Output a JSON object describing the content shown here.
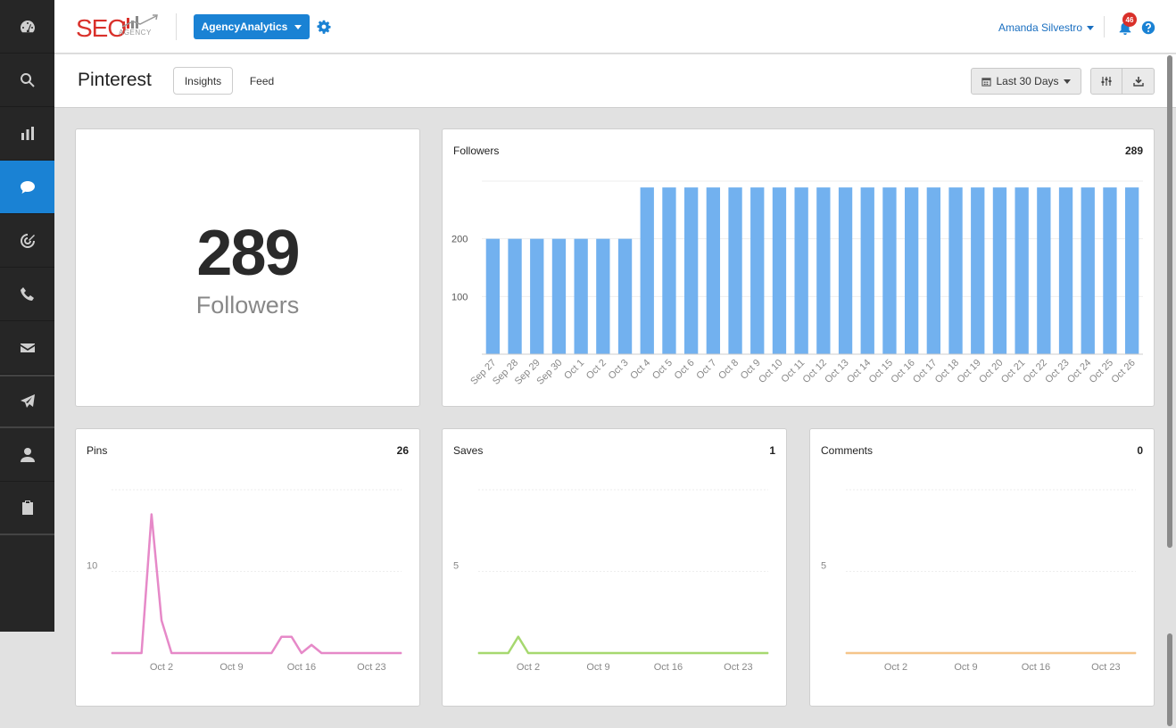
{
  "sidebar": {
    "items": [
      {
        "icon": "dashboard-icon",
        "active": false
      },
      {
        "icon": "search-icon",
        "active": false
      },
      {
        "icon": "bar-chart-icon",
        "active": false
      },
      {
        "icon": "chat-bubble-icon",
        "active": true
      },
      {
        "icon": "target-icon",
        "active": false
      },
      {
        "icon": "phone-icon",
        "active": false
      },
      {
        "icon": "envelope-icon",
        "active": false
      },
      {
        "icon": "paper-plane-icon",
        "active": false
      },
      {
        "icon": "user-icon",
        "active": false
      },
      {
        "icon": "clipboard-check-icon",
        "active": false
      }
    ]
  },
  "header": {
    "logo_text": "SEO",
    "logo_subtext": "AGENCY",
    "agency_button": "AgencyAnalytics",
    "user_name": "Amanda Silvestro",
    "notification_count": "46"
  },
  "subheader": {
    "title": "Pinterest",
    "tabs": [
      {
        "label": "Insights",
        "active": true
      },
      {
        "label": "Feed",
        "active": false
      }
    ],
    "date_range": "Last 30 Days"
  },
  "summary": {
    "value": "289",
    "label": "Followers"
  },
  "colors": {
    "accent": "#1a82d4",
    "followers_bar": "#72b1ef",
    "pins_line": "#e689c8",
    "saves_line": "#a6d86f",
    "comments_line": "#f5c58a"
  },
  "followers_chart": {
    "title": "Followers",
    "total": "289",
    "chart_data": {
      "type": "bar",
      "categories": [
        "Sep 27",
        "Sep 28",
        "Sep 29",
        "Sep 30",
        "Oct 1",
        "Oct 2",
        "Oct 3",
        "Oct 4",
        "Oct 5",
        "Oct 6",
        "Oct 7",
        "Oct 8",
        "Oct 9",
        "Oct 10",
        "Oct 11",
        "Oct 12",
        "Oct 13",
        "Oct 14",
        "Oct 15",
        "Oct 16",
        "Oct 17",
        "Oct 18",
        "Oct 19",
        "Oct 20",
        "Oct 21",
        "Oct 22",
        "Oct 23",
        "Oct 24",
        "Oct 25",
        "Oct 26"
      ],
      "values": [
        200,
        200,
        200,
        200,
        200,
        200,
        200,
        289,
        289,
        289,
        289,
        289,
        289,
        289,
        289,
        289,
        289,
        289,
        289,
        289,
        289,
        289,
        289,
        289,
        289,
        289,
        289,
        289,
        289,
        289
      ],
      "yticks": [
        100,
        200
      ],
      "ylim": [
        0,
        300
      ]
    }
  },
  "pins_chart": {
    "title": "Pins",
    "total": "26",
    "chart_data": {
      "type": "line",
      "x": [
        "Sep 27",
        "Sep 28",
        "Sep 29",
        "Sep 30",
        "Oct 1",
        "Oct 2",
        "Oct 3",
        "Oct 4",
        "Oct 5",
        "Oct 6",
        "Oct 7",
        "Oct 8",
        "Oct 9",
        "Oct 10",
        "Oct 11",
        "Oct 12",
        "Oct 13",
        "Oct 14",
        "Oct 15",
        "Oct 16",
        "Oct 17",
        "Oct 18",
        "Oct 19",
        "Oct 20",
        "Oct 21",
        "Oct 22",
        "Oct 23",
        "Oct 24",
        "Oct 25",
        "Oct 26"
      ],
      "values": [
        0,
        0,
        0,
        0,
        17,
        4,
        0,
        0,
        0,
        0,
        0,
        0,
        0,
        0,
        0,
        0,
        0,
        2,
        2,
        0,
        1,
        0,
        0,
        0,
        0,
        0,
        0,
        0,
        0,
        0
      ],
      "xticks": [
        "Oct 2",
        "Oct 9",
        "Oct 16",
        "Oct 23"
      ],
      "yticks": [
        10
      ],
      "ylim": [
        0,
        20
      ]
    }
  },
  "saves_chart": {
    "title": "Saves",
    "total": "1",
    "chart_data": {
      "type": "line",
      "x": [
        "Sep 27",
        "Sep 28",
        "Sep 29",
        "Sep 30",
        "Oct 1",
        "Oct 2",
        "Oct 3",
        "Oct 4",
        "Oct 5",
        "Oct 6",
        "Oct 7",
        "Oct 8",
        "Oct 9",
        "Oct 10",
        "Oct 11",
        "Oct 12",
        "Oct 13",
        "Oct 14",
        "Oct 15",
        "Oct 16",
        "Oct 17",
        "Oct 18",
        "Oct 19",
        "Oct 20",
        "Oct 21",
        "Oct 22",
        "Oct 23",
        "Oct 24",
        "Oct 25",
        "Oct 26"
      ],
      "values": [
        0,
        0,
        0,
        0,
        1,
        0,
        0,
        0,
        0,
        0,
        0,
        0,
        0,
        0,
        0,
        0,
        0,
        0,
        0,
        0,
        0,
        0,
        0,
        0,
        0,
        0,
        0,
        0,
        0,
        0
      ],
      "xticks": [
        "Oct 2",
        "Oct 9",
        "Oct 16",
        "Oct 23"
      ],
      "yticks": [
        5
      ],
      "ylim": [
        0,
        10
      ]
    }
  },
  "comments_chart": {
    "title": "Comments",
    "total": "0",
    "chart_data": {
      "type": "line",
      "x": [
        "Sep 27",
        "Sep 28",
        "Sep 29",
        "Sep 30",
        "Oct 1",
        "Oct 2",
        "Oct 3",
        "Oct 4",
        "Oct 5",
        "Oct 6",
        "Oct 7",
        "Oct 8",
        "Oct 9",
        "Oct 10",
        "Oct 11",
        "Oct 12",
        "Oct 13",
        "Oct 14",
        "Oct 15",
        "Oct 16",
        "Oct 17",
        "Oct 18",
        "Oct 19",
        "Oct 20",
        "Oct 21",
        "Oct 22",
        "Oct 23",
        "Oct 24",
        "Oct 25",
        "Oct 26"
      ],
      "values": [
        0,
        0,
        0,
        0,
        0,
        0,
        0,
        0,
        0,
        0,
        0,
        0,
        0,
        0,
        0,
        0,
        0,
        0,
        0,
        0,
        0,
        0,
        0,
        0,
        0,
        0,
        0,
        0,
        0,
        0
      ],
      "xticks": [
        "Oct 2",
        "Oct 9",
        "Oct 16",
        "Oct 23"
      ],
      "yticks": [
        5
      ],
      "ylim": [
        0,
        10
      ]
    }
  }
}
